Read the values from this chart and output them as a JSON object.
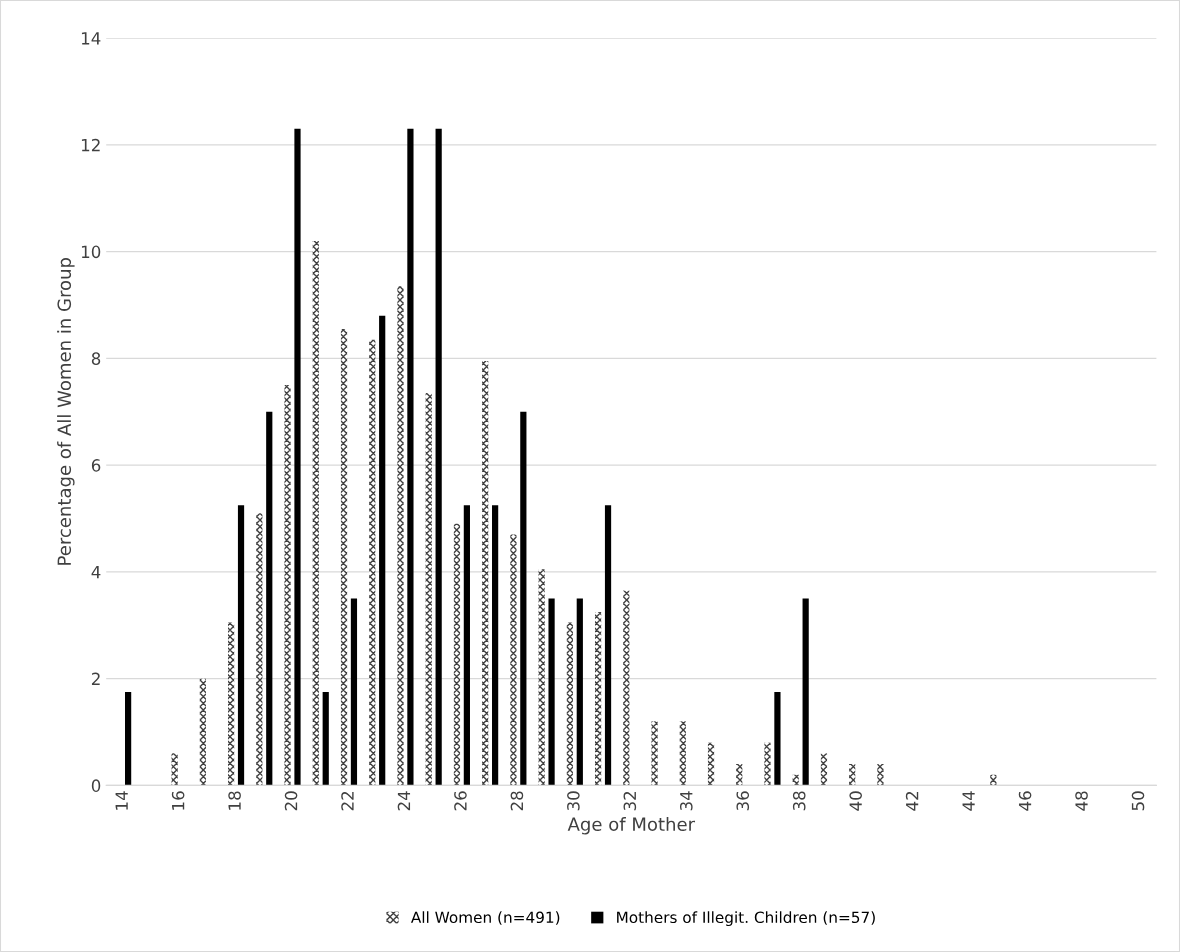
{
  "chart_data": {
    "type": "bar",
    "xlabel": "Age of Mother",
    "ylabel": "Percentage of All Women in Group",
    "categories": [
      "14",
      null,
      "16",
      null,
      "18",
      null,
      "20",
      null,
      "22",
      null,
      "24",
      null,
      "26",
      null,
      "28",
      null,
      "30",
      null,
      "32",
      null,
      "34",
      null,
      "36",
      null,
      "38",
      null,
      "40",
      null,
      "42",
      null,
      "44",
      null,
      "46",
      null,
      "48",
      null,
      "50"
    ],
    "series": [
      {
        "name": "All Women (n=491)",
        "color": "#404040",
        "values": [
          0,
          0,
          0.6,
          2.0,
          3.05,
          5.1,
          7.5,
          10.2,
          8.55,
          8.35,
          9.35,
          7.35,
          4.9,
          7.95,
          4.7,
          4.05,
          3.05,
          3.25,
          3.65,
          1.2,
          1.2,
          0.8,
          0.4,
          0.8,
          0.2,
          0.6,
          0.4,
          0.4,
          0,
          0,
          0,
          0.2,
          0,
          0,
          0,
          0,
          0
        ]
      },
      {
        "name": "Mothers of Illegit. Children (n=57)",
        "color": "#000000",
        "values": [
          1.75,
          0,
          0,
          0,
          5.25,
          7.0,
          12.3,
          1.75,
          3.5,
          8.8,
          12.3,
          12.3,
          5.25,
          5.25,
          7.0,
          3.5,
          3.5,
          5.25,
          0,
          0,
          0,
          0,
          0,
          1.75,
          3.5,
          0,
          0,
          0,
          0,
          0,
          0,
          0,
          0,
          0,
          0,
          0,
          0
        ]
      }
    ],
    "ylim": [
      0,
      14
    ],
    "yticks": [
      0,
      2,
      4,
      6,
      8,
      10,
      12,
      14
    ],
    "grid": "y",
    "legend": "bottom"
  }
}
